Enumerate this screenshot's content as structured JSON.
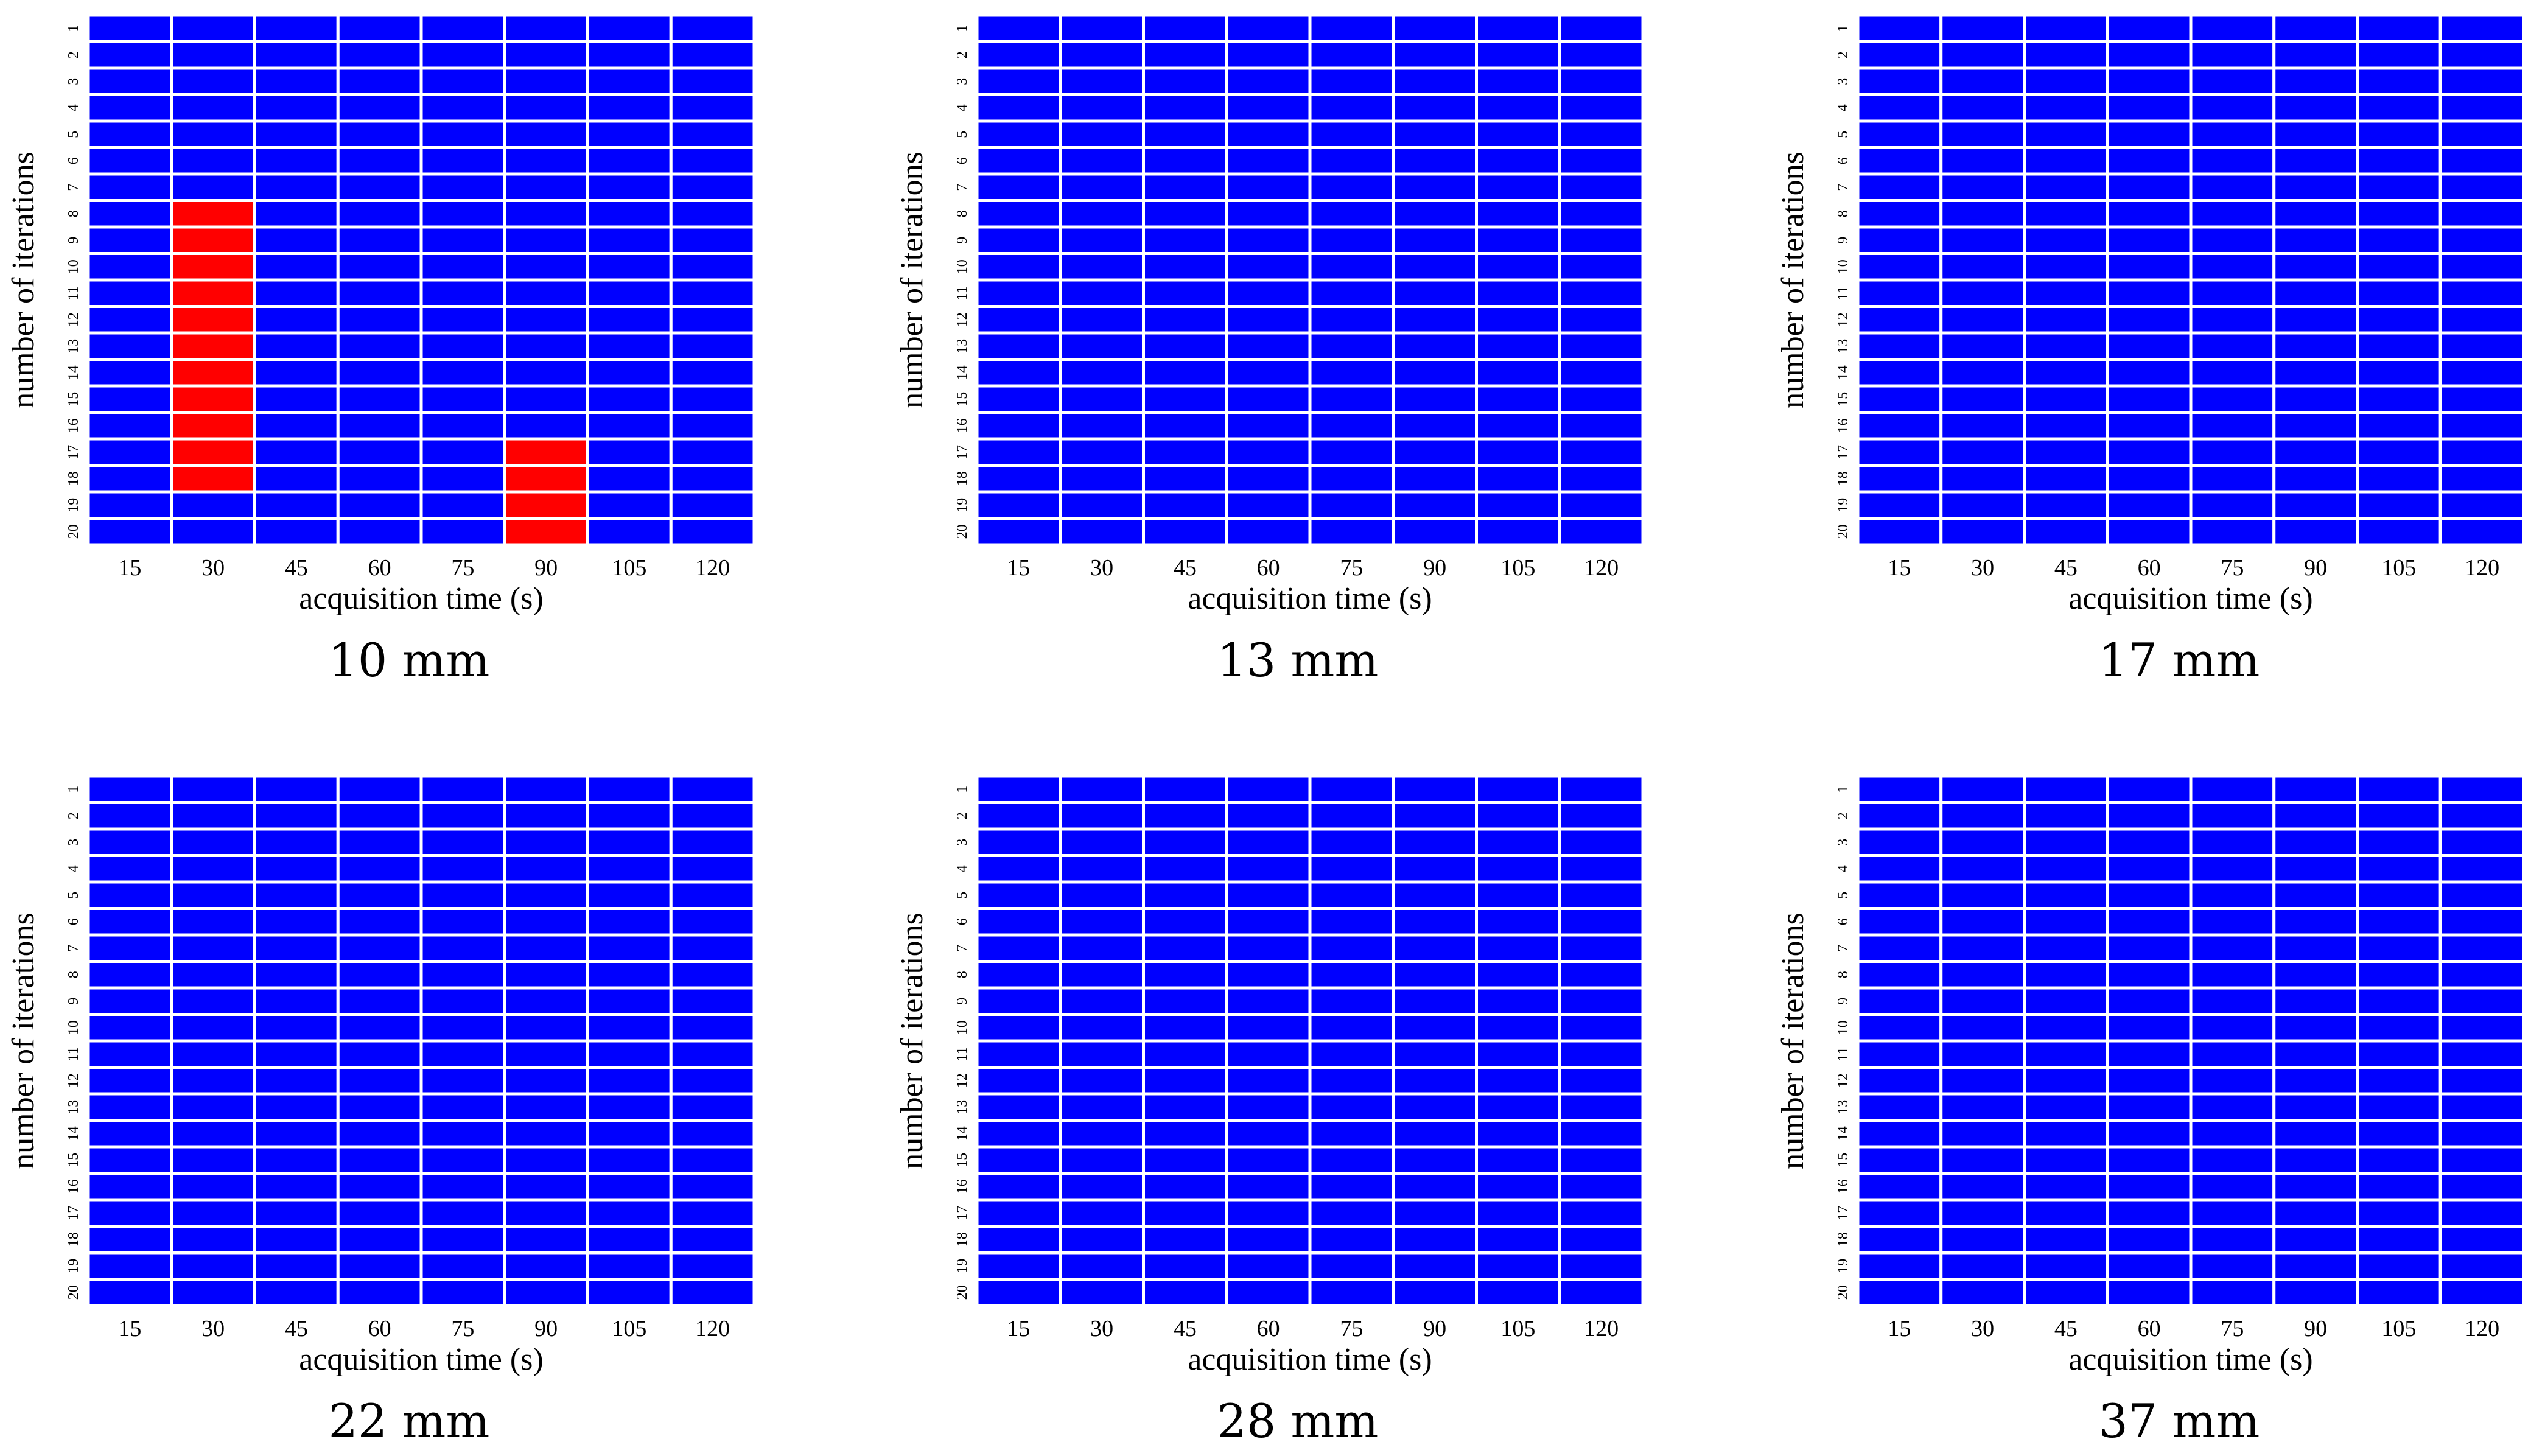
{
  "colors": {
    "normal": "#0000ff",
    "highlight": "#ff0000",
    "gridline": "#ffffff"
  },
  "chart_data": [
    {
      "type": "heatmap",
      "title": "10 mm",
      "xlabel": "acquisition time (s)",
      "ylabel": "number of iterations",
      "x": [
        "15",
        "30",
        "45",
        "60",
        "75",
        "90",
        "105",
        "120"
      ],
      "y": [
        "1",
        "2",
        "3",
        "4",
        "5",
        "6",
        "7",
        "8",
        "9",
        "10",
        "11",
        "12",
        "13",
        "14",
        "15",
        "16",
        "17",
        "18",
        "19",
        "20"
      ],
      "highlighted_cells": [
        {
          "x": "30",
          "y": [
            "8",
            "9",
            "10",
            "11",
            "12",
            "13",
            "14",
            "15",
            "16",
            "17",
            "18"
          ]
        },
        {
          "x": "90",
          "y": [
            "17",
            "18",
            "19",
            "20"
          ]
        }
      ]
    },
    {
      "type": "heatmap",
      "title": "13 mm",
      "xlabel": "acquisition time (s)",
      "ylabel": "number of iterations",
      "x": [
        "15",
        "30",
        "45",
        "60",
        "75",
        "90",
        "105",
        "120"
      ],
      "y": [
        "1",
        "2",
        "3",
        "4",
        "5",
        "6",
        "7",
        "8",
        "9",
        "10",
        "11",
        "12",
        "13",
        "14",
        "15",
        "16",
        "17",
        "18",
        "19",
        "20"
      ],
      "highlighted_cells": []
    },
    {
      "type": "heatmap",
      "title": "17 mm",
      "xlabel": "acquisition time (s)",
      "ylabel": "number of iterations",
      "x": [
        "15",
        "30",
        "45",
        "60",
        "75",
        "90",
        "105",
        "120"
      ],
      "y": [
        "1",
        "2",
        "3",
        "4",
        "5",
        "6",
        "7",
        "8",
        "9",
        "10",
        "11",
        "12",
        "13",
        "14",
        "15",
        "16",
        "17",
        "18",
        "19",
        "20"
      ],
      "highlighted_cells": []
    },
    {
      "type": "heatmap",
      "title": "22 mm",
      "xlabel": "acquisition time (s)",
      "ylabel": "number of iterations",
      "x": [
        "15",
        "30",
        "45",
        "60",
        "75",
        "90",
        "105",
        "120"
      ],
      "y": [
        "1",
        "2",
        "3",
        "4",
        "5",
        "6",
        "7",
        "8",
        "9",
        "10",
        "11",
        "12",
        "13",
        "14",
        "15",
        "16",
        "17",
        "18",
        "19",
        "20"
      ],
      "highlighted_cells": []
    },
    {
      "type": "heatmap",
      "title": "28 mm",
      "xlabel": "acquisition time (s)",
      "ylabel": "number of iterations",
      "x": [
        "15",
        "30",
        "45",
        "60",
        "75",
        "90",
        "105",
        "120"
      ],
      "y": [
        "1",
        "2",
        "3",
        "4",
        "5",
        "6",
        "7",
        "8",
        "9",
        "10",
        "11",
        "12",
        "13",
        "14",
        "15",
        "16",
        "17",
        "18",
        "19",
        "20"
      ],
      "highlighted_cells": []
    },
    {
      "type": "heatmap",
      "title": "37 mm",
      "xlabel": "acquisition time (s)",
      "ylabel": "number of iterations",
      "x": [
        "15",
        "30",
        "45",
        "60",
        "75",
        "90",
        "105",
        "120"
      ],
      "y": [
        "1",
        "2",
        "3",
        "4",
        "5",
        "6",
        "7",
        "8",
        "9",
        "10",
        "11",
        "12",
        "13",
        "14",
        "15",
        "16",
        "17",
        "18",
        "19",
        "20"
      ],
      "highlighted_cells": []
    }
  ]
}
